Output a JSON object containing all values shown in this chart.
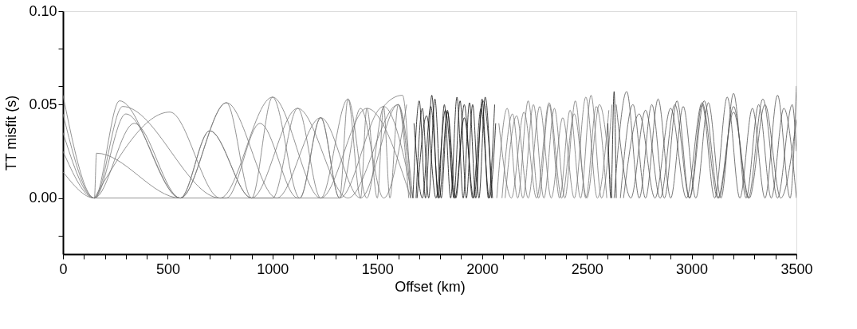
{
  "chart_data": {
    "type": "line",
    "xlabel": "Offset (km)",
    "ylabel": "TT misfit (s)",
    "xlim": [
      0,
      3500
    ],
    "ylim": [
      -0.03,
      0.1
    ],
    "xticks": [
      0,
      {
        "value": 100,
        "label": null
      },
      {
        "value": 200,
        "label": null
      },
      {
        "value": 300,
        "label": null
      },
      {
        "value": 400,
        "label": null
      },
      500,
      {
        "value": 600,
        "label": null
      },
      {
        "value": 700,
        "label": null
      },
      {
        "value": 800,
        "label": null
      },
      {
        "value": 900,
        "label": null
      },
      1000,
      {
        "value": 1100,
        "label": null
      },
      {
        "value": 1200,
        "label": null
      },
      {
        "value": 1300,
        "label": null
      },
      {
        "value": 1400,
        "label": null
      },
      1500,
      {
        "value": 1600,
        "label": null
      },
      {
        "value": 1700,
        "label": null
      },
      {
        "value": 1800,
        "label": null
      },
      {
        "value": 1900,
        "label": null
      },
      2000,
      {
        "value": 2100,
        "label": null
      },
      {
        "value": 2200,
        "label": null
      },
      {
        "value": 2300,
        "label": null
      },
      {
        "value": 2400,
        "label": null
      },
      2500,
      {
        "value": 2600,
        "label": null
      },
      {
        "value": 2700,
        "label": null
      },
      {
        "value": 2800,
        "label": null
      },
      {
        "value": 2900,
        "label": null
      },
      3000,
      {
        "value": 3100,
        "label": null
      },
      {
        "value": 3200,
        "label": null
      },
      {
        "value": 3300,
        "label": null
      },
      {
        "value": 3400,
        "label": null
      },
      3500
    ],
    "yticks": [
      {
        "value": -0.02,
        "label": null
      },
      {
        "value": 0,
        "label": "0.00"
      },
      {
        "value": 0.05,
        "label": "0.05"
      },
      {
        "value": 0.06,
        "label": null
      },
      {
        "value": 0.08,
        "label": null
      },
      {
        "value": 0.1,
        "label": "0.10"
      }
    ],
    "grid": false,
    "legend": false,
    "marker": "none",
    "series": [
      {
        "color": "#777777",
        "x": [
          0,
          150,
          270,
          560,
          780,
          900,
          1000,
          1130,
          1230,
          1320,
          1360,
          1420,
          1450,
          1500,
          1530,
          1560,
          1600,
          1650
        ],
        "values": [
          0.055,
          0,
          0.052,
          0,
          0.051,
          0,
          0.054,
          0,
          0.043,
          0,
          0.053,
          0,
          0.048,
          0,
          0.049,
          0,
          0.05,
          0
        ]
      },
      {
        "color": "#777777",
        "x": [
          0,
          150,
          285,
          750,
          1000,
          1120,
          1230,
          1360,
          1450,
          1530,
          1620,
          1660
        ],
        "values": [
          0.045,
          0,
          0.049,
          0,
          0.0,
          0.048,
          0,
          0.053,
          0,
          0.049,
          0.055,
          0
        ]
      },
      {
        "color": "#777777",
        "x": [
          0,
          150,
          300,
          560,
          700,
          900,
          940,
          1130,
          1230,
          1320,
          1420,
          1530,
          1640
        ],
        "values": [
          0.035,
          0,
          0.045,
          0,
          0.036,
          0,
          0.0,
          0.0,
          0.043,
          0,
          0.048,
          0,
          0.05
        ]
      },
      {
        "color": "#777777",
        "x": [
          0,
          150,
          340,
          560,
          780,
          1020,
          1230,
          1420,
          1600,
          1660
        ],
        "values": [
          0.025,
          0,
          0.04,
          0,
          0.051,
          0,
          0.043,
          0,
          0.05,
          0
        ]
      },
      {
        "color": "#777777",
        "x": [
          0,
          150,
          160,
          560,
          780,
          940,
          1120,
          1320,
          1530,
          1670
        ],
        "values": [
          0.014,
          0,
          0.024,
          0,
          0.0,
          0.04,
          0,
          0.0,
          0.049,
          0
        ]
      },
      {
        "color": "#777777",
        "x": [
          150,
          510,
          750,
          1000,
          1230,
          1450,
          1660
        ],
        "values": [
          0,
          0.046,
          0,
          0.054,
          0,
          0.048,
          0
        ]
      },
      {
        "color": "#777777",
        "x": [
          150,
          560,
          700,
          900,
          1120,
          1360,
          1600,
          1670
        ],
        "values": [
          0,
          0,
          0.036,
          0,
          0.048,
          0.0,
          0.05,
          0
        ]
      },
      {
        "color": "#111111",
        "x": [
          1670,
          1700,
          1730,
          1760,
          1790,
          1820,
          1850,
          1880,
          1910,
          1940,
          1970,
          2000,
          2030,
          2060
        ],
        "values": [
          0,
          0.052,
          0,
          0.055,
          0,
          0.05,
          0,
          0.054,
          0,
          0.051,
          0,
          0.053,
          0,
          0.05
        ]
      },
      {
        "color": "#111111",
        "x": [
          1685,
          1715,
          1745,
          1775,
          1805,
          1835,
          1865,
          1895,
          1925,
          1955,
          1985,
          2015,
          2045
        ],
        "values": [
          0,
          0.048,
          0,
          0.053,
          0,
          0.047,
          0,
          0.052,
          0,
          0.05,
          0,
          0.054,
          0
        ]
      },
      {
        "color": "#111111",
        "x": [
          1675,
          1715,
          1755,
          1795,
          1835,
          1875,
          1915,
          1955,
          1995,
          2035,
          2065
        ],
        "values": [
          0.04,
          0,
          0.049,
          0,
          0.046,
          0,
          0.05,
          0,
          0.048,
          0,
          0.04
        ]
      },
      {
        "color": "#111111",
        "x": [
          1690,
          1735,
          1780,
          1825,
          1870,
          1915,
          1960,
          2005,
          2050
        ],
        "values": [
          0,
          0.044,
          0,
          0.047,
          0,
          0.043,
          0,
          0.052,
          0
        ]
      },
      {
        "color": "#777777",
        "x": [
          2070,
          2120,
          2170,
          2220,
          2270,
          2320,
          2370,
          2420,
          2470,
          2520,
          2570,
          2620
        ],
        "values": [
          0,
          0.048,
          0,
          0.052,
          0,
          0.05,
          0,
          0.047,
          0,
          0.055,
          0,
          0.05
        ]
      },
      {
        "color": "#777777",
        "x": [
          2095,
          2145,
          2195,
          2245,
          2295,
          2345,
          2395,
          2445,
          2495,
          2545,
          2595
        ],
        "values": [
          0,
          0.045,
          0,
          0.05,
          0,
          0.048,
          0,
          0.052,
          0,
          0.049,
          0
        ]
      },
      {
        "color": "#777777",
        "x": [
          2080,
          2140,
          2200,
          2260,
          2320,
          2380,
          2440,
          2500,
          2560,
          2620
        ],
        "values": [
          0.04,
          0,
          0.046,
          0,
          0.051,
          0,
          0.045,
          0,
          0.05,
          0
        ]
      },
      {
        "color": "#777777",
        "x": [
          2110,
          2165,
          2220,
          2275,
          2330,
          2385,
          2440,
          2495,
          2550,
          2605
        ],
        "values": [
          0,
          0.044,
          0,
          0.049,
          0,
          0.043,
          0,
          0.054,
          0,
          0.047
        ]
      },
      {
        "color": "#111111",
        "x": [
          2600,
          2615,
          2630,
          2640
        ],
        "values": [
          0.04,
          0,
          0.057,
          0
        ]
      },
      {
        "color": "#555555",
        "x": [
          2630,
          2690,
          2750,
          2810,
          2870,
          2930,
          2990,
          3050,
          3110,
          3170,
          3230,
          3290,
          3350,
          3410,
          3470,
          3500
        ],
        "values": [
          0,
          0.057,
          0,
          0.05,
          0,
          0.052,
          0,
          0.05,
          0,
          0.054,
          0,
          0.048,
          0,
          0.055,
          0,
          0.06
        ]
      },
      {
        "color": "#555555",
        "x": [
          2660,
          2720,
          2780,
          2840,
          2900,
          2960,
          3020,
          3080,
          3140,
          3200,
          3260,
          3320,
          3380,
          3440,
          3500
        ],
        "values": [
          0,
          0.05,
          0,
          0.053,
          0,
          0.049,
          0,
          0.051,
          0,
          0.056,
          0,
          0.05,
          0,
          0.048,
          0
        ]
      },
      {
        "color": "#555555",
        "x": [
          2640,
          2710,
          2780,
          2850,
          2920,
          2990,
          3060,
          3130,
          3200,
          3270,
          3340,
          3410,
          3480,
          3500
        ],
        "values": [
          0.05,
          0,
          0.047,
          0,
          0.05,
          0,
          0.052,
          0,
          0.049,
          0,
          0.053,
          0,
          0.05,
          0.025
        ]
      },
      {
        "color": "#555555",
        "x": [
          2675,
          2750,
          2825,
          2900,
          2975,
          3050,
          3125,
          3200,
          3275,
          3350,
          3425,
          3500
        ],
        "values": [
          0,
          0.045,
          0,
          0.048,
          0,
          0.051,
          0,
          0.046,
          0,
          0.05,
          0,
          0.042
        ]
      }
    ]
  }
}
